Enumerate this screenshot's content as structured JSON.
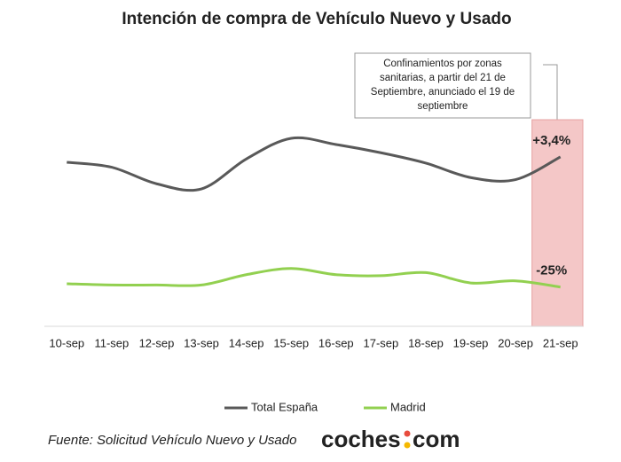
{
  "chart_data": {
    "type": "line",
    "title": "Intención de compra de Vehículo Nuevo y Usado",
    "categories": [
      "10-sep",
      "11-sep",
      "12-sep",
      "13-sep",
      "14-sep",
      "15-sep",
      "16-sep",
      "17-sep",
      "18-sep",
      "19-sep",
      "20-sep",
      "21-sep"
    ],
    "series": [
      {
        "name": "Total España",
        "color": "#595959",
        "values": [
          79.4,
          77,
          69,
          66.5,
          81,
          91,
          88,
          84,
          79,
          72,
          71,
          82
        ]
      },
      {
        "name": "Madrid",
        "color": "#92d050",
        "values": [
          20.6,
          20,
          20,
          20,
          25,
          28,
          25,
          24.5,
          26,
          21,
          22,
          19
        ]
      }
    ],
    "ylim": [
      0,
      100
    ],
    "annotations": [
      "+3,4%",
      "-25%"
    ],
    "note_lines": [
      "Confinamientos por zonas",
      "sanitarias, a partir del 21 de",
      "Septiembre, anunciado el 19 de",
      "septiembre"
    ],
    "source": "Fuente: Solicitud Vehículo Nuevo y Usado",
    "logo": [
      "coches",
      "com"
    ],
    "highlight_color": "#f4c7c7"
  }
}
